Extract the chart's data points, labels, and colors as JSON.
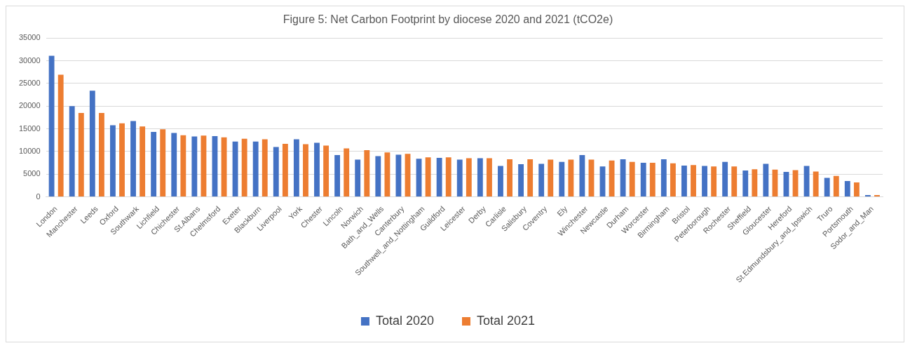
{
  "chart_data": {
    "type": "bar",
    "title": "Figure 5: Net Carbon Footprint by diocese 2020 and 2021 (tCO2e)",
    "categories": [
      "London",
      "Manchester",
      "Leeds",
      "Oxford",
      "Southwark",
      "Lichfield",
      "Chichester",
      "St.Albans",
      "Chelmsford",
      "Exeter",
      "Blackburn",
      "Liverpool",
      "York",
      "Chester",
      "Lincoln",
      "Norwich",
      "Bath_and_Wells",
      "Canterbury",
      "Southwell_and_Nottingham",
      "Guildford",
      "Leicester",
      "Derby",
      "Carlisle",
      "Salisbury",
      "Coventry",
      "Ely",
      "Winchester",
      "Newcastle",
      "Durham",
      "Worcester",
      "Birmingham",
      "Bristol",
      "Peterborough",
      "Rochester",
      "Sheffield",
      "Gloucester",
      "Hereford",
      "St.Edmundsbury_and_Ipswich",
      "Truro",
      "Portsmouth",
      "Sodor_and_Man"
    ],
    "series": [
      {
        "name": "Total 2020",
        "color": "#4472c4",
        "values": [
          31100,
          20000,
          23400,
          15800,
          16700,
          14300,
          14100,
          13300,
          13400,
          12200,
          12200,
          11000,
          12700,
          11900,
          9200,
          8200,
          9000,
          9300,
          8400,
          8600,
          8200,
          8500,
          6800,
          7200,
          7300,
          7700,
          9200,
          6700,
          8300,
          7500,
          8300,
          6900,
          6800,
          7700,
          5800,
          7300,
          5500,
          6800,
          4200,
          3500,
          400
        ]
      },
      {
        "name": "Total 2021",
        "color": "#ed7d31",
        "values": [
          26900,
          18500,
          18500,
          16200,
          15500,
          14900,
          13600,
          13500,
          13100,
          12800,
          12700,
          11700,
          11600,
          11300,
          10700,
          10300,
          9800,
          9500,
          8700,
          8700,
          8500,
          8500,
          8300,
          8300,
          8200,
          8200,
          8200,
          8000,
          7700,
          7500,
          7400,
          7000,
          6700,
          6700,
          6100,
          6000,
          5900,
          5600,
          4600,
          3200,
          400
        ]
      }
    ],
    "ylim": [
      0,
      35000
    ],
    "yticks": [
      0,
      5000,
      10000,
      15000,
      20000,
      25000,
      30000,
      35000
    ],
    "grid": "y",
    "legend": "bottom"
  }
}
